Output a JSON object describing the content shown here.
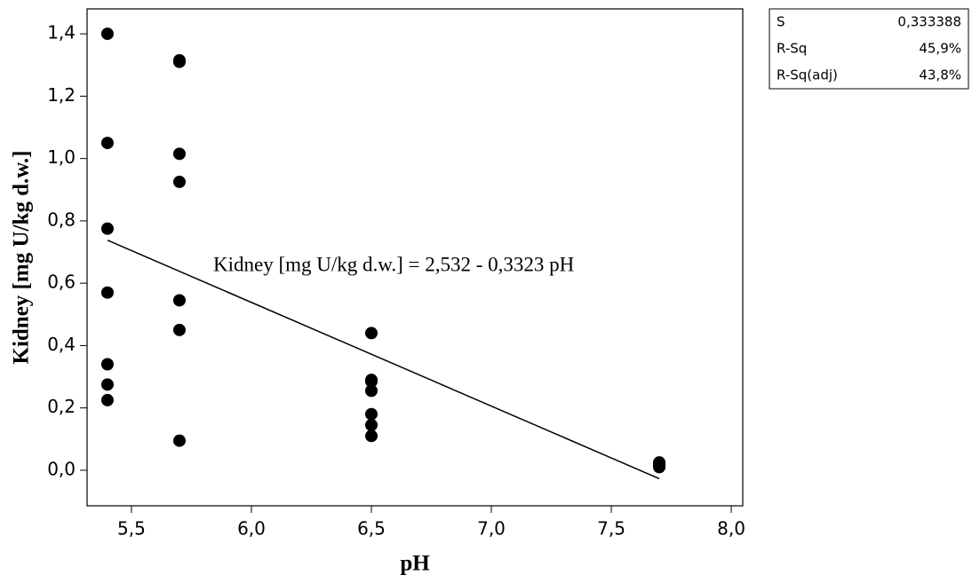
{
  "chart_data": {
    "type": "scatter",
    "x_label": "pH",
    "y_label": "Kidney [mg U/kg d.w.]",
    "annotation": "Kidney [mg U/kg d.w.] =  2,532 - 0,3323 pH",
    "xlim": [
      5.315,
      8.048
    ],
    "ylim": [
      -0.114,
      1.48
    ],
    "xticks": [
      {
        "value": 5.5,
        "label": "5,5"
      },
      {
        "value": 6.0,
        "label": "6,0"
      },
      {
        "value": 6.5,
        "label": "6,5"
      },
      {
        "value": 7.0,
        "label": "7,0"
      },
      {
        "value": 7.5,
        "label": "7,5"
      },
      {
        "value": 8.0,
        "label": "8,0"
      }
    ],
    "yticks": [
      {
        "value": 0.0,
        "label": "0,0"
      },
      {
        "value": 0.2,
        "label": "0,2"
      },
      {
        "value": 0.4,
        "label": "0,4"
      },
      {
        "value": 0.6,
        "label": "0,6"
      },
      {
        "value": 0.8,
        "label": "0,8"
      },
      {
        "value": 1.0,
        "label": "1,0"
      },
      {
        "value": 1.2,
        "label": "1,2"
      },
      {
        "value": 1.4,
        "label": "1,4"
      }
    ],
    "grid": false,
    "series": [
      {
        "color": "#000000",
        "x": [
          5.4,
          5.4,
          5.4,
          5.4,
          5.4,
          5.4,
          5.4,
          5.7,
          5.7,
          5.7,
          5.7,
          5.7,
          5.7,
          5.7,
          6.5,
          6.5,
          6.5,
          6.5,
          6.5,
          6.5,
          6.5,
          7.7,
          7.7,
          7.7,
          7.7
        ],
        "values": [
          1.4,
          1.05,
          0.775,
          0.57,
          0.34,
          0.275,
          0.225,
          1.315,
          1.31,
          1.015,
          0.925,
          0.545,
          0.45,
          0.095,
          0.44,
          0.29,
          0.285,
          0.255,
          0.18,
          0.145,
          0.11,
          0.025,
          0.02,
          0.015,
          0.01
        ]
      }
    ],
    "fit_line": {
      "color": "#000000",
      "x": [
        5.4,
        7.7
      ],
      "values": [
        0.738,
        -0.027
      ]
    },
    "stats_table": {
      "rows": [
        [
          "S",
          "0,333388"
        ],
        [
          "R-Sq",
          "45,9%"
        ],
        [
          "R-Sq(adj)",
          "43,8%"
        ]
      ]
    }
  }
}
